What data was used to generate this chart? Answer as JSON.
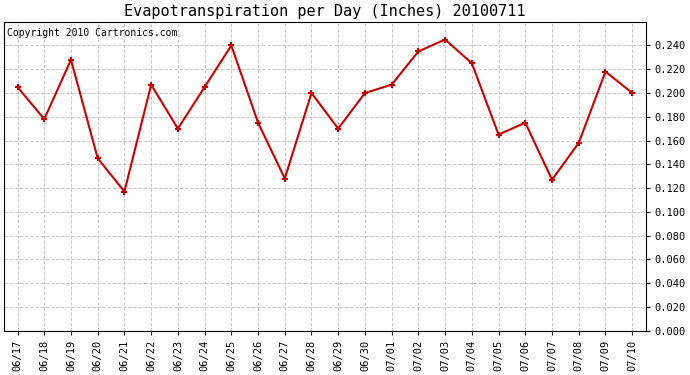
{
  "title": "Evapotranspiration per Day (Inches) 20100711",
  "copyright": "Copyright 2010 Cartronics.com",
  "labels": [
    "06/17",
    "06/18",
    "06/19",
    "06/20",
    "06/21",
    "06/22",
    "06/23",
    "06/24",
    "06/25",
    "06/26",
    "06/27",
    "06/28",
    "06/29",
    "06/30",
    "07/01",
    "07/02",
    "07/03",
    "07/04",
    "07/05",
    "07/06",
    "07/07",
    "07/08",
    "07/09",
    "07/10"
  ],
  "values": [
    0.205,
    0.178,
    0.228,
    0.145,
    0.117,
    0.207,
    0.17,
    0.205,
    0.24,
    0.175,
    0.128,
    0.2,
    0.17,
    0.2,
    0.207,
    0.235,
    0.245,
    0.225,
    0.165,
    0.175,
    0.127,
    0.158,
    0.218,
    0.2
  ],
  "line_color": "#cc0000",
  "marker": "+",
  "marker_color": "#cc0000",
  "bg_color": "#ffffff",
  "grid_color": "#c8c8c8",
  "ylim_min": 0.0,
  "ylim_max": 0.26,
  "title_fontsize": 11,
  "copyright_fontsize": 7,
  "tick_fontsize": 7.5
}
